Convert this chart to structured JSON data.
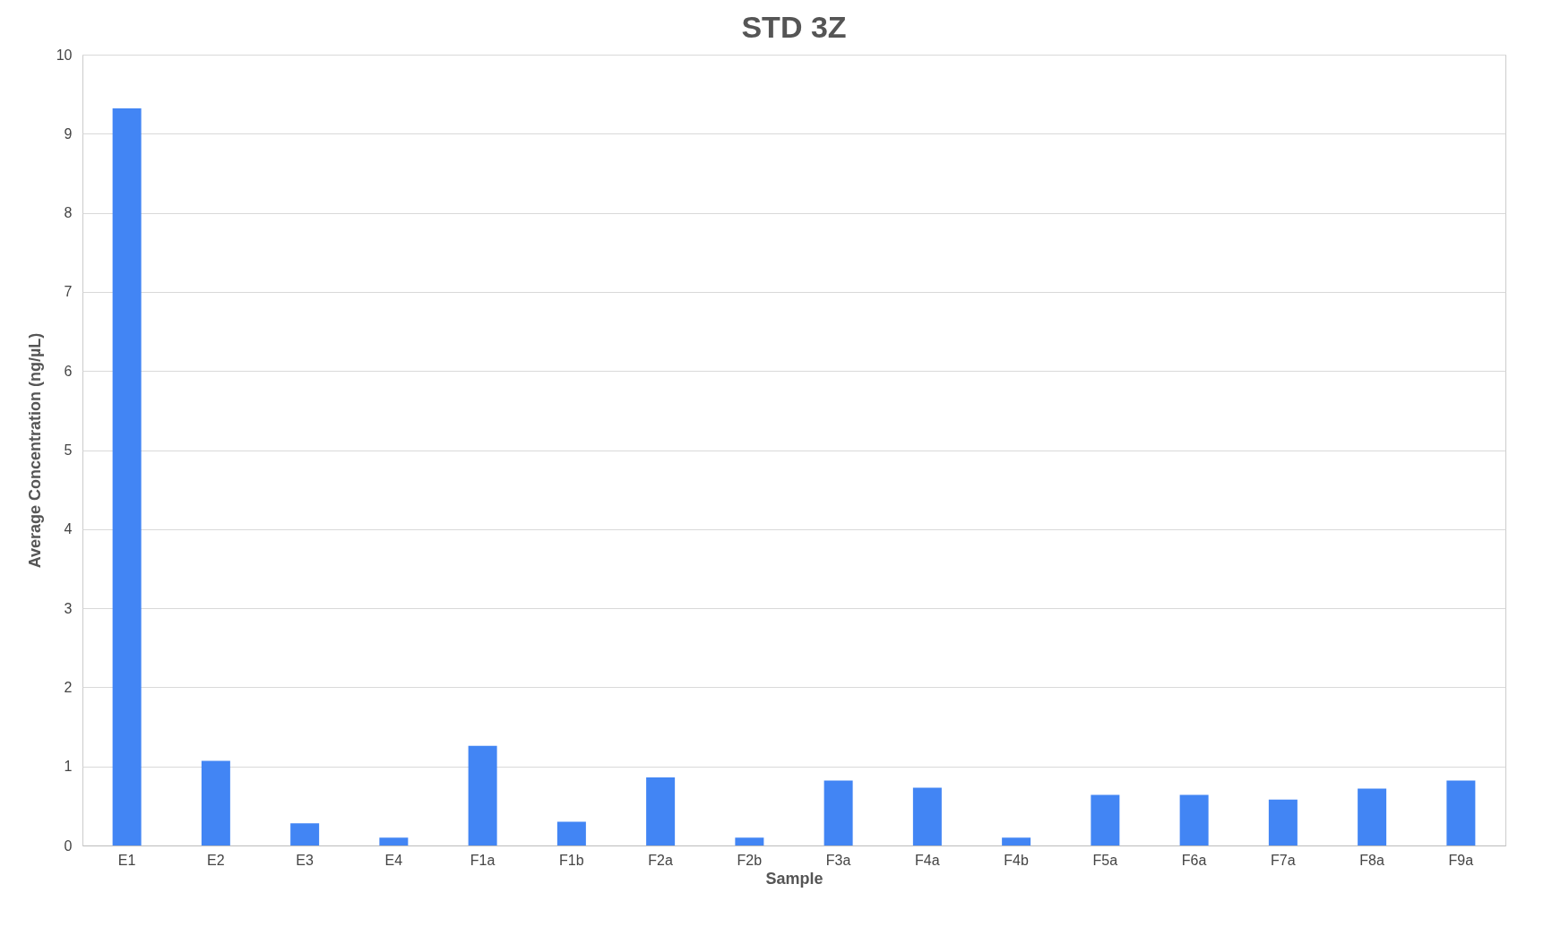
{
  "chart_data": {
    "type": "bar",
    "title": "STD 3Z",
    "xlabel": "Sample",
    "ylabel": "Average Concentration (ng/µL)",
    "categories": [
      "E1",
      "E2",
      "E3",
      "E4",
      "F1a",
      "F1b",
      "F2a",
      "F2b",
      "F3a",
      "F4a",
      "F4b",
      "F5a",
      "F6a",
      "F7a",
      "F8a",
      "F9a"
    ],
    "values": [
      9.32,
      1.07,
      0.28,
      0.1,
      1.26,
      0.3,
      0.86,
      0.1,
      0.82,
      0.73,
      0.1,
      0.64,
      0.64,
      0.58,
      0.72,
      0.82
    ],
    "color": "#4285f4",
    "ylim": [
      0,
      10
    ],
    "yticks": [
      0,
      1,
      2,
      3,
      4,
      5,
      6,
      7,
      8,
      9,
      10
    ],
    "grid": "y"
  }
}
